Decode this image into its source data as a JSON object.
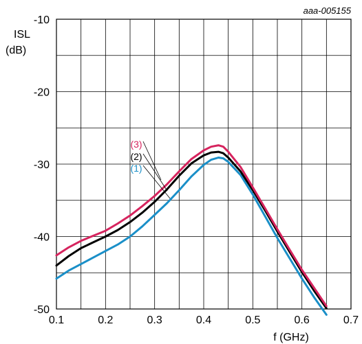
{
  "chart_data": {
    "type": "line",
    "figure_id": "aaa-005155",
    "xlabel": "f (GHz)",
    "ylabel": [
      "ISL",
      "(dB)"
    ],
    "xlim": [
      0.1,
      0.7
    ],
    "ylim": [
      -50,
      -10
    ],
    "x_ticks": [
      "0.1",
      "0.2",
      "0.3",
      "0.4",
      "0.5",
      "0.6",
      "0.7"
    ],
    "y_ticks": [
      "-10",
      "-20",
      "-30",
      "-40",
      "-50"
    ],
    "x_tick_values": [
      0.1,
      0.2,
      0.3,
      0.4,
      0.5,
      0.6,
      0.7
    ],
    "y_tick_values": [
      -10,
      -20,
      -30,
      -40,
      -50
    ],
    "x_grid_step": 0.05,
    "y_grid_step": 5,
    "grid": true,
    "series": [
      {
        "name": "(1)",
        "color": "#1a8fc8",
        "x": [
          0.1,
          0.125,
          0.15,
          0.175,
          0.2,
          0.225,
          0.25,
          0.275,
          0.3,
          0.325,
          0.35,
          0.375,
          0.4,
          0.415,
          0.43,
          0.44,
          0.45,
          0.475,
          0.5,
          0.525,
          0.55,
          0.575,
          0.6,
          0.625,
          0.65
        ],
        "y": [
          -45.8,
          -44.7,
          -43.8,
          -42.9,
          -42.0,
          -41.1,
          -40.0,
          -38.6,
          -37.0,
          -35.4,
          -33.6,
          -31.7,
          -30.1,
          -29.4,
          -29.1,
          -29.2,
          -29.7,
          -31.5,
          -34.2,
          -37.2,
          -40.2,
          -43.0,
          -45.8,
          -48.4,
          -50.8
        ]
      },
      {
        "name": "(2)",
        "color": "#000000",
        "x": [
          0.1,
          0.125,
          0.15,
          0.175,
          0.2,
          0.225,
          0.25,
          0.275,
          0.3,
          0.325,
          0.35,
          0.375,
          0.4,
          0.415,
          0.43,
          0.44,
          0.45,
          0.475,
          0.5,
          0.525,
          0.55,
          0.575,
          0.6,
          0.625,
          0.65
        ],
        "y": [
          -44.0,
          -42.7,
          -41.6,
          -40.8,
          -40.0,
          -39.1,
          -38.0,
          -36.7,
          -35.2,
          -33.5,
          -31.6,
          -29.9,
          -28.8,
          -28.4,
          -28.3,
          -28.5,
          -29.1,
          -31.0,
          -33.6,
          -36.4,
          -39.3,
          -42.1,
          -44.9,
          -47.5,
          -49.9
        ]
      },
      {
        "name": "(3)",
        "color": "#d6245e",
        "x": [
          0.1,
          0.125,
          0.15,
          0.175,
          0.2,
          0.225,
          0.25,
          0.275,
          0.3,
          0.325,
          0.35,
          0.375,
          0.4,
          0.415,
          0.43,
          0.44,
          0.45,
          0.475,
          0.5,
          0.525,
          0.55,
          0.575,
          0.6,
          0.625,
          0.65
        ],
        "y": [
          -42.6,
          -41.5,
          -40.6,
          -39.9,
          -39.2,
          -38.2,
          -37.1,
          -35.8,
          -34.4,
          -32.8,
          -31.0,
          -29.3,
          -28.1,
          -27.6,
          -27.4,
          -27.6,
          -28.3,
          -30.4,
          -33.2,
          -36.1,
          -39.0,
          -41.8,
          -44.6,
          -47.1,
          -49.6
        ]
      }
    ]
  }
}
